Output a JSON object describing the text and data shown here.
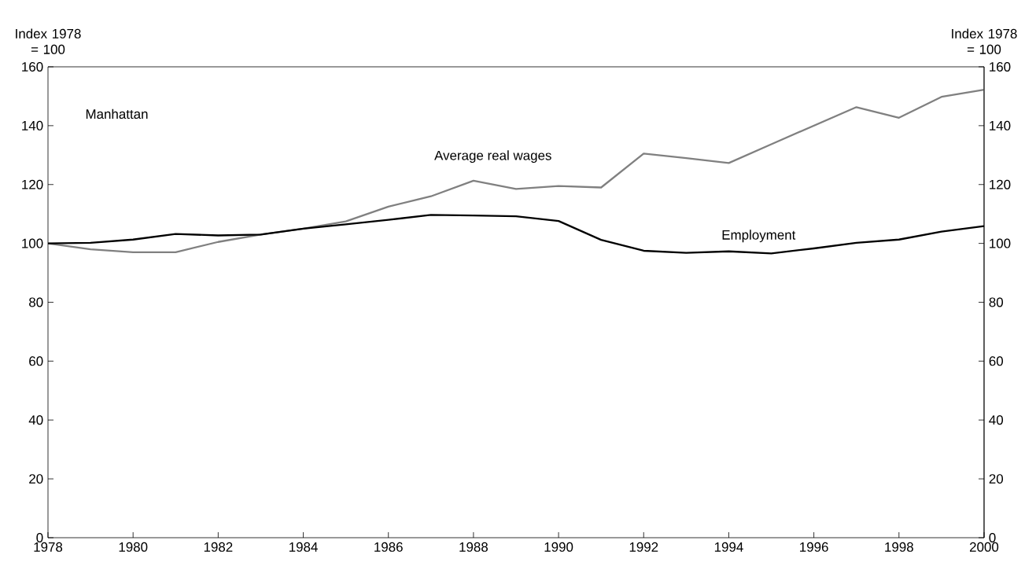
{
  "chart_data": {
    "type": "line",
    "ylabel": "Index 1978 = 100",
    "y2label": "Index 1978 = 100",
    "annotations": [
      "Manhattan"
    ],
    "x": [
      1978,
      1979,
      1980,
      1981,
      1982,
      1983,
      1984,
      1985,
      1986,
      1987,
      1988,
      1989,
      1990,
      1991,
      1992,
      1993,
      1994,
      1995,
      1996,
      1997,
      1998,
      1999,
      2000
    ],
    "series": [
      {
        "name": "Average real wages",
        "color": "#808080",
        "values": [
          100,
          98,
          97,
          97,
          100.5,
          103,
          105,
          107.5,
          112.5,
          116,
          121.3,
          118.5,
          119.5,
          119,
          130.5,
          129,
          127.3,
          133.7,
          140,
          146.3,
          142.7,
          149.8,
          152.2
        ]
      },
      {
        "name": "Employment",
        "color": "#000000",
        "values": [
          100,
          100.2,
          101.3,
          103.2,
          102.7,
          103,
          105,
          106.5,
          108,
          109.7,
          109.5,
          109.2,
          107.6,
          101.2,
          97.5,
          96.8,
          97.3,
          96.6,
          98.3,
          100.2,
          101.3,
          104,
          105.9
        ]
      }
    ],
    "xlim": [
      1978,
      2000
    ],
    "xticks": [
      1978,
      1980,
      1982,
      1984,
      1986,
      1988,
      1990,
      1992,
      1994,
      1996,
      1998,
      2000
    ],
    "ylim": [
      0,
      160
    ],
    "yticks": [
      0,
      20,
      40,
      60,
      80,
      100,
      120,
      140,
      160
    ],
    "y2lim": [
      0,
      160
    ],
    "y2ticks": [
      0,
      20,
      40,
      60,
      80,
      100,
      120,
      140,
      160
    ],
    "grid": false,
    "legend": false,
    "marker": "none",
    "line_style": "solid"
  }
}
